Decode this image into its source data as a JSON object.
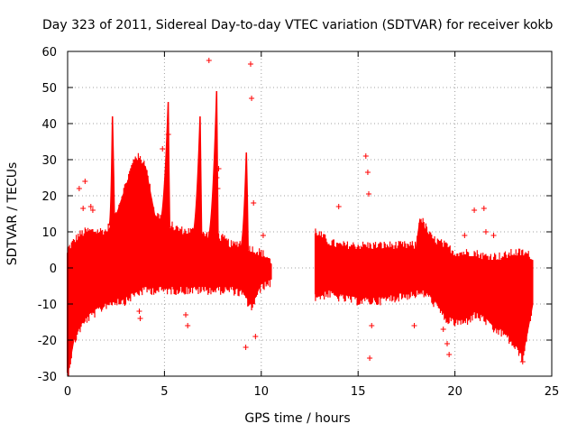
{
  "chart_data": {
    "type": "scatter",
    "title": "Day 323 of 2011, Sidereal Day-to-day VTEC variation (SDTVAR) for receiver kokb",
    "xlabel": "GPS time / hours",
    "ylabel": "SDTVAR / TECUs",
    "xlim": [
      0,
      25
    ],
    "ylim": [
      -30,
      60
    ],
    "xticks": [
      0,
      5,
      10,
      15,
      20,
      25
    ],
    "yticks": [
      -30,
      -20,
      -10,
      0,
      10,
      20,
      30,
      40,
      50,
      60
    ],
    "grid": true,
    "marker": "+",
    "color": "#ff0000",
    "series": [
      {
        "name": "SDTVAR",
        "dense_band_upper": [
          [
            0,
            4
          ],
          [
            0.3,
            6
          ],
          [
            0.6,
            8
          ],
          [
            1,
            9
          ],
          [
            1.5,
            9
          ],
          [
            2,
            9
          ],
          [
            2.5,
            14
          ],
          [
            3,
            22
          ],
          [
            3.5,
            30
          ],
          [
            4,
            28
          ],
          [
            4.5,
            14
          ],
          [
            5,
            12
          ],
          [
            5.5,
            10
          ],
          [
            6,
            9
          ],
          [
            6.5,
            9
          ],
          [
            7,
            8
          ],
          [
            7.5,
            8
          ],
          [
            8,
            7
          ],
          [
            8.5,
            5
          ],
          [
            9,
            6
          ],
          [
            9.5,
            4
          ],
          [
            10,
            3
          ],
          [
            10.5,
            1
          ]
        ],
        "dense_band_lower": [
          [
            0,
            -29
          ],
          [
            0.3,
            -20
          ],
          [
            0.6,
            -16
          ],
          [
            1,
            -13
          ],
          [
            1.5,
            -11
          ],
          [
            2,
            -9
          ],
          [
            2.5,
            -8
          ],
          [
            3,
            -8
          ],
          [
            3.5,
            -6
          ],
          [
            4,
            -5
          ],
          [
            4.5,
            -5
          ],
          [
            5,
            -5
          ],
          [
            5.5,
            -5
          ],
          [
            6,
            -5
          ],
          [
            6.5,
            -5
          ],
          [
            7,
            -5
          ],
          [
            7.5,
            -5
          ],
          [
            8,
            -5
          ],
          [
            8.5,
            -5
          ],
          [
            9,
            -6
          ],
          [
            9.5,
            -10
          ],
          [
            10,
            -4
          ],
          [
            10.5,
            -3
          ]
        ],
        "dense_band2_upper": [
          [
            12.8,
            9
          ],
          [
            13.5,
            6
          ],
          [
            14,
            5
          ],
          [
            15,
            5
          ],
          [
            16,
            5
          ],
          [
            17,
            5
          ],
          [
            18,
            5
          ],
          [
            18.2,
            13
          ],
          [
            18.8,
            7
          ],
          [
            19.5,
            5
          ],
          [
            20,
            3
          ],
          [
            20.5,
            3
          ],
          [
            21,
            3
          ],
          [
            21.5,
            2
          ],
          [
            22,
            2
          ],
          [
            22.5,
            2
          ],
          [
            23,
            3
          ],
          [
            23.5,
            3
          ],
          [
            24,
            2
          ]
        ],
        "dense_band2_lower": [
          [
            12.8,
            -7
          ],
          [
            13.5,
            -6
          ],
          [
            14,
            -7
          ],
          [
            15,
            -8
          ],
          [
            16,
            -8
          ],
          [
            17,
            -7
          ],
          [
            18,
            -6
          ],
          [
            18.5,
            -6
          ],
          [
            19,
            -9
          ],
          [
            19.5,
            -13
          ],
          [
            20,
            -14
          ],
          [
            20.5,
            -14
          ],
          [
            21,
            -12
          ],
          [
            21.5,
            -13
          ],
          [
            22,
            -16
          ],
          [
            22.5,
            -17
          ],
          [
            23,
            -20
          ],
          [
            23.5,
            -24
          ],
          [
            24,
            -10
          ]
        ],
        "spikes": [
          {
            "x": 2.3,
            "peak": 42,
            "width": 0.15
          },
          {
            "x": 5.15,
            "peak": 46,
            "width": 0.45
          },
          {
            "x": 6.8,
            "peak": 42,
            "width": 0.4
          },
          {
            "x": 7.65,
            "peak": 49,
            "width": 0.45
          },
          {
            "x": 9.2,
            "peak": 32,
            "width": 0.3
          }
        ],
        "outliers": [
          [
            0.6,
            22
          ],
          [
            0.8,
            16.5
          ],
          [
            0.9,
            24
          ],
          [
            1.2,
            17
          ],
          [
            1.3,
            16
          ],
          [
            3.8,
            13
          ],
          [
            3.9,
            6
          ],
          [
            4.0,
            -1
          ],
          [
            4.2,
            -4
          ],
          [
            3.7,
            -12
          ],
          [
            3.75,
            -14
          ],
          [
            4.9,
            33
          ],
          [
            5.2,
            37
          ],
          [
            6.1,
            -13
          ],
          [
            6.2,
            -16
          ],
          [
            7.3,
            57.5
          ],
          [
            7.7,
            25
          ],
          [
            7.8,
            27.5
          ],
          [
            7.75,
            22
          ],
          [
            9.45,
            56.5
          ],
          [
            9.5,
            47
          ],
          [
            9.6,
            18
          ],
          [
            10.1,
            9
          ],
          [
            9.7,
            -19
          ],
          [
            9.2,
            -22
          ],
          [
            14.0,
            17
          ],
          [
            15.4,
            31
          ],
          [
            15.5,
            26.5
          ],
          [
            15.55,
            20.5
          ],
          [
            15.6,
            -25
          ],
          [
            15.7,
            -16
          ],
          [
            17.9,
            -16
          ],
          [
            19.4,
            -17
          ],
          [
            19.6,
            -21
          ],
          [
            19.7,
            -24
          ],
          [
            20.5,
            9
          ],
          [
            21.0,
            16
          ],
          [
            21.5,
            16.5
          ],
          [
            21.6,
            10
          ],
          [
            22.0,
            9
          ],
          [
            23.0,
            -19
          ],
          [
            23.5,
            -26
          ]
        ]
      }
    ]
  }
}
